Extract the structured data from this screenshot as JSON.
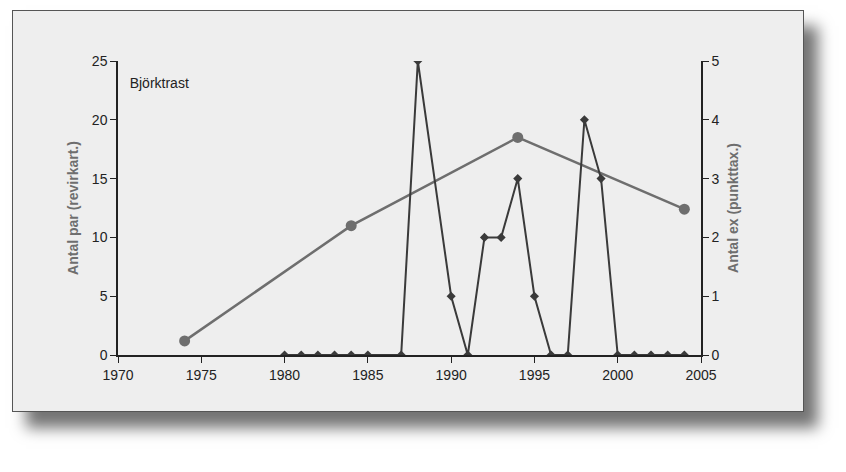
{
  "chart_data": {
    "type": "line",
    "title": "Björktrast",
    "xlim": [
      1970,
      2005
    ],
    "xticks": [
      1970,
      1975,
      1980,
      1985,
      1990,
      1995,
      2000,
      2005
    ],
    "ylim": [
      0,
      25
    ],
    "yticks": [
      0,
      5,
      10,
      15,
      20,
      25
    ],
    "y2lim": [
      0,
      5
    ],
    "y2ticks": [
      0,
      1,
      2,
      3,
      4,
      5
    ],
    "y_label": "Antal par (revirkart.)",
    "y2_label": "Antal ex (punkttax.)",
    "grid": false,
    "series": [
      {
        "name": "Antal par (revirkart.)",
        "color": "#6e6e6e",
        "marker": "circle",
        "line_style": "solid",
        "x": [
          1974,
          1984,
          1994,
          2004
        ],
        "values": [
          1.2,
          11,
          18.5,
          12.4
        ]
      },
      {
        "name": "Antal ex (punkttax.)",
        "color": "#3a3a3a",
        "marker": "diamond",
        "line_style": "solid",
        "axis": "y2",
        "x": [
          1980,
          1981,
          1982,
          1983,
          1984,
          1985,
          1987,
          1988,
          1990,
          1991,
          1992,
          1993,
          1994,
          1995,
          1996,
          1997,
          1998,
          1999,
          2000,
          2001,
          2002,
          2003,
          2004
        ],
        "values": [
          0,
          0,
          0,
          0,
          0,
          0,
          0,
          5,
          1,
          0,
          2,
          2,
          3,
          1,
          0,
          0,
          4,
          3,
          0,
          0,
          0,
          0,
          0
        ]
      }
    ]
  }
}
